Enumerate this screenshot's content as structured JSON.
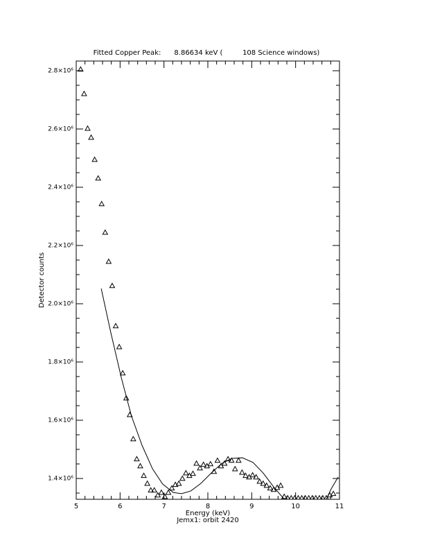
{
  "chart_data": {
    "type": "scatter",
    "title": "Fitted Copper Peak:      8.86634 keV (         108 Science windows)",
    "x_label": "Energy (keV)",
    "subtitle": "Jemx1: orbit 2420",
    "y_label": "Detector counts",
    "xlim": [
      5,
      11
    ],
    "xticks": [
      5,
      6,
      7,
      8,
      9,
      10,
      11
    ],
    "ylim": [
      1328600,
      2833300
    ],
    "yticks": [
      {
        "value": 1400000,
        "label": "1.4×10⁶"
      },
      {
        "value": 1600000,
        "label": "1.6×10⁶"
      },
      {
        "value": 1800000,
        "label": "1.8×10⁶"
      },
      {
        "value": 2000000,
        "label": "2.0×10⁶"
      },
      {
        "value": 2200000,
        "label": "2.2×10⁶"
      },
      {
        "value": 2400000,
        "label": "2.4×10⁶"
      },
      {
        "value": 2600000,
        "label": "2.6×10⁶"
      },
      {
        "value": 2800000,
        "label": "2.8×10⁶"
      }
    ],
    "series": [
      {
        "mode": "triangle",
        "color": "#000000",
        "x": [
          5.1,
          5.18,
          5.26,
          5.34,
          5.42,
          5.5,
          5.58,
          5.66,
          5.74,
          5.82,
          5.9,
          5.98,
          6.06,
          6.14,
          6.22,
          6.3,
          6.38,
          6.46,
          6.54,
          6.62,
          6.7,
          6.78,
          6.86,
          6.94,
          7.02,
          7.1,
          7.18,
          7.26,
          7.34,
          7.42,
          7.5,
          7.58,
          7.66,
          7.74,
          7.82,
          7.9,
          7.98,
          8.06,
          8.14,
          8.22,
          8.3,
          8.38,
          8.46,
          8.54,
          8.62,
          8.7,
          8.78,
          8.86,
          8.94,
          9.02,
          9.1,
          9.18,
          9.26,
          9.34,
          9.42,
          9.5,
          9.58,
          9.66,
          9.74,
          9.82,
          9.9,
          9.98,
          10.06,
          10.14,
          10.22,
          10.3,
          10.38,
          10.46,
          10.54,
          10.62,
          10.7,
          10.78,
          10.86
        ],
        "values": [
          2805000,
          2721000,
          2602000,
          2571000,
          2495000,
          2431000,
          2343000,
          2245000,
          2145000,
          2062000,
          1924000,
          1852000,
          1762000,
          1676000,
          1619000,
          1536000,
          1467000,
          1443000,
          1410000,
          1383000,
          1360000,
          1360000,
          1343000,
          1352000,
          1338000,
          1352000,
          1367000,
          1379000,
          1383000,
          1400000,
          1419000,
          1410000,
          1417000,
          1452000,
          1436000,
          1448000,
          1443000,
          1450000,
          1424000,
          1462000,
          1443000,
          1452000,
          1467000,
          1462000,
          1433000,
          1462000,
          1421000,
          1410000,
          1405000,
          1412000,
          1405000,
          1390000,
          1383000,
          1376000,
          1367000,
          1362000,
          1369000,
          1376000,
          1338000,
          1333000,
          1333000,
          1333000,
          1333000,
          1333000,
          1333000,
          1333000,
          1333000,
          1333000,
          1333000,
          1333000,
          1333000,
          1343000,
          1348000
        ]
      },
      {
        "mode": "line",
        "color": "#000000",
        "x": [
          5.57,
          5.79,
          6.03,
          6.26,
          6.5,
          6.74,
          6.97,
          7.21,
          7.4,
          7.61,
          7.84,
          8.08,
          8.32,
          8.55,
          8.79,
          9.03,
          9.26,
          9.5,
          9.74,
          10.3,
          10.7,
          10.81,
          10.97
        ],
        "values": [
          2052000,
          1900000,
          1745000,
          1614000,
          1514000,
          1433000,
          1381000,
          1352000,
          1348000,
          1357000,
          1383000,
          1419000,
          1452000,
          1469000,
          1471000,
          1455000,
          1419000,
          1371000,
          1329000,
          null,
          1329000,
          1364000,
          1405000
        ]
      }
    ]
  }
}
